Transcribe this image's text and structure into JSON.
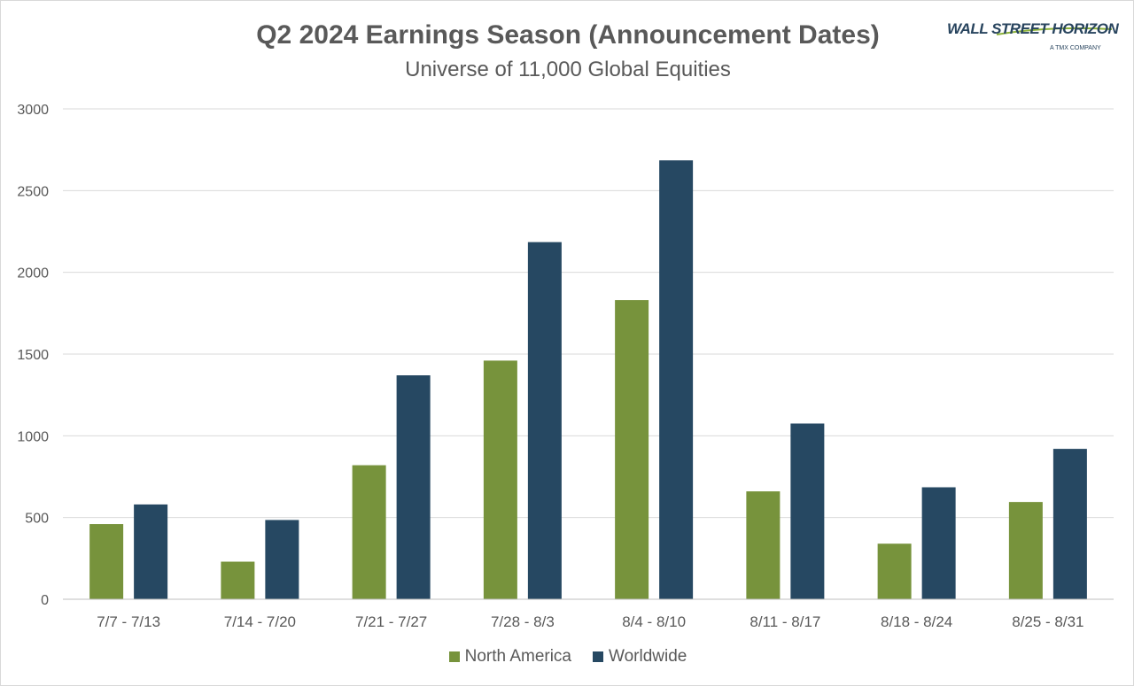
{
  "header": {
    "title": "Q2 2024 Earnings Season (Announcement Dates)",
    "subtitle": "Universe of 11,000 Global Equities"
  },
  "logo": {
    "name": "WALL STREET HORIZON",
    "tagline": "A TMX COMPANY",
    "color": "#28445e",
    "accent": "#8db33a"
  },
  "chart_data": {
    "type": "bar",
    "title": "Q2 2024 Earnings Season (Announcement Dates)",
    "subtitle": "Universe of 11,000 Global Equities",
    "categories": [
      "7/7 - 7/13",
      "7/14 - 7/20",
      "7/21 - 7/27",
      "7/28 - 8/3",
      "8/4 - 8/10",
      "8/11 - 8/17",
      "8/18 - 8/24",
      "8/25 - 8/31"
    ],
    "series": [
      {
        "name": "North America",
        "color": "#77933c",
        "values": [
          460,
          230,
          820,
          1460,
          1830,
          660,
          340,
          595
        ]
      },
      {
        "name": "Worldwide",
        "color": "#264862",
        "values": [
          580,
          485,
          1370,
          2185,
          2685,
          1075,
          685,
          920
        ]
      }
    ],
    "yticks": [
      "0",
      "500",
      "1000",
      "1500",
      "2000",
      "2500",
      "3000"
    ],
    "ylim": [
      0,
      3000
    ],
    "grid": true,
    "legend_position": "bottom"
  }
}
